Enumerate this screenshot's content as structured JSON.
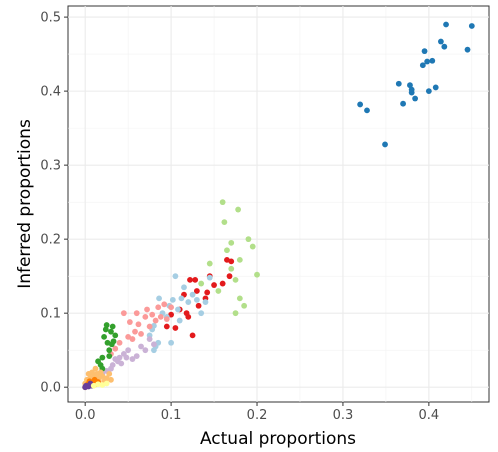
{
  "chart_data": {
    "type": "scatter",
    "title": "",
    "xlabel": "Actual proportions",
    "ylabel": "Inferred proportions",
    "xlim": [
      -0.02,
      0.47
    ],
    "ylim": [
      -0.02,
      0.515
    ],
    "x_ticks": [
      "0.0",
      "0.1",
      "0.2",
      "0.3",
      "0.4"
    ],
    "y_ticks": [
      "0.0",
      "0.1",
      "0.2",
      "0.3",
      "0.4",
      "0.5"
    ],
    "grid": true,
    "legend": "none",
    "series": [
      {
        "color": "#1f78b4",
        "points": [
          [
            0.32,
            0.382
          ],
          [
            0.328,
            0.374
          ],
          [
            0.349,
            0.328
          ],
          [
            0.365,
            0.41
          ],
          [
            0.37,
            0.383
          ],
          [
            0.378,
            0.408
          ],
          [
            0.38,
            0.398
          ],
          [
            0.38,
            0.402
          ],
          [
            0.384,
            0.39
          ],
          [
            0.393,
            0.435
          ],
          [
            0.395,
            0.454
          ],
          [
            0.398,
            0.44
          ],
          [
            0.4,
            0.4
          ],
          [
            0.404,
            0.441
          ],
          [
            0.408,
            0.405
          ],
          [
            0.414,
            0.467
          ],
          [
            0.418,
            0.46
          ],
          [
            0.42,
            0.49
          ],
          [
            0.445,
            0.456
          ],
          [
            0.45,
            0.488
          ]
        ]
      },
      {
        "color": "#b2df8a",
        "points": [
          [
            0.135,
            0.14
          ],
          [
            0.145,
            0.167
          ],
          [
            0.155,
            0.13
          ],
          [
            0.16,
            0.25
          ],
          [
            0.162,
            0.223
          ],
          [
            0.165,
            0.185
          ],
          [
            0.17,
            0.16
          ],
          [
            0.17,
            0.195
          ],
          [
            0.175,
            0.145
          ],
          [
            0.178,
            0.24
          ],
          [
            0.18,
            0.172
          ],
          [
            0.18,
            0.12
          ],
          [
            0.185,
            0.11
          ],
          [
            0.19,
            0.2
          ],
          [
            0.195,
            0.19
          ],
          [
            0.2,
            0.152
          ],
          [
            0.175,
            0.1
          ]
        ]
      },
      {
        "color": "#e31a1c",
        "points": [
          [
            0.095,
            0.082
          ],
          [
            0.1,
            0.098
          ],
          [
            0.105,
            0.08
          ],
          [
            0.11,
            0.105
          ],
          [
            0.115,
            0.125
          ],
          [
            0.118,
            0.1
          ],
          [
            0.12,
            0.095
          ],
          [
            0.122,
            0.145
          ],
          [
            0.125,
            0.07
          ],
          [
            0.128,
            0.145
          ],
          [
            0.13,
            0.13
          ],
          [
            0.132,
            0.11
          ],
          [
            0.14,
            0.12
          ],
          [
            0.142,
            0.128
          ],
          [
            0.145,
            0.15
          ],
          [
            0.15,
            0.138
          ],
          [
            0.16,
            0.14
          ],
          [
            0.165,
            0.172
          ],
          [
            0.17,
            0.17
          ],
          [
            0.168,
            0.15
          ]
        ]
      },
      {
        "color": "#a6cee3",
        "points": [
          [
            0.075,
            0.07
          ],
          [
            0.078,
            0.078
          ],
          [
            0.08,
            0.083
          ],
          [
            0.082,
            0.055
          ],
          [
            0.085,
            0.06
          ],
          [
            0.086,
            0.12
          ],
          [
            0.09,
            0.1
          ],
          [
            0.095,
            0.095
          ],
          [
            0.098,
            0.11
          ],
          [
            0.1,
            0.06
          ],
          [
            0.102,
            0.118
          ],
          [
            0.105,
            0.15
          ],
          [
            0.108,
            0.105
          ],
          [
            0.11,
            0.09
          ],
          [
            0.112,
            0.12
          ],
          [
            0.115,
            0.135
          ],
          [
            0.12,
            0.115
          ],
          [
            0.125,
            0.125
          ],
          [
            0.13,
            0.118
          ],
          [
            0.135,
            0.1
          ],
          [
            0.14,
            0.115
          ],
          [
            0.145,
            0.148
          ],
          [
            0.08,
            0.05
          ]
        ]
      },
      {
        "color": "#fb9a99",
        "points": [
          [
            0.04,
            0.06
          ],
          [
            0.045,
            0.1
          ],
          [
            0.05,
            0.068
          ],
          [
            0.052,
            0.088
          ],
          [
            0.055,
            0.065
          ],
          [
            0.058,
            0.075
          ],
          [
            0.06,
            0.1
          ],
          [
            0.062,
            0.085
          ],
          [
            0.065,
            0.072
          ],
          [
            0.07,
            0.095
          ],
          [
            0.072,
            0.105
          ],
          [
            0.075,
            0.082
          ],
          [
            0.078,
            0.098
          ],
          [
            0.082,
            0.09
          ],
          [
            0.085,
            0.108
          ],
          [
            0.088,
            0.095
          ],
          [
            0.092,
            0.112
          ],
          [
            0.095,
            0.092
          ],
          [
            0.1,
            0.108
          ],
          [
            0.03,
            0.045
          ],
          [
            0.035,
            0.052
          ]
        ]
      },
      {
        "color": "#cab2d6",
        "points": [
          [
            0.03,
            0.025
          ],
          [
            0.032,
            0.03
          ],
          [
            0.035,
            0.038
          ],
          [
            0.038,
            0.035
          ],
          [
            0.04,
            0.04
          ],
          [
            0.042,
            0.032
          ],
          [
            0.045,
            0.045
          ],
          [
            0.048,
            0.04
          ],
          [
            0.05,
            0.05
          ],
          [
            0.055,
            0.038
          ],
          [
            0.06,
            0.042
          ],
          [
            0.065,
            0.055
          ],
          [
            0.07,
            0.05
          ],
          [
            0.075,
            0.065
          ],
          [
            0.08,
            0.058
          ],
          [
            0.025,
            0.022
          ],
          [
            0.02,
            0.018
          ],
          [
            0.015,
            0.012
          ]
        ]
      },
      {
        "color": "#33a02c",
        "points": [
          [
            0.015,
            0.035
          ],
          [
            0.018,
            0.03
          ],
          [
            0.02,
            0.04
          ],
          [
            0.022,
            0.068
          ],
          [
            0.024,
            0.078
          ],
          [
            0.025,
            0.084
          ],
          [
            0.026,
            0.06
          ],
          [
            0.028,
            0.05
          ],
          [
            0.03,
            0.075
          ],
          [
            0.032,
            0.082
          ],
          [
            0.033,
            0.062
          ],
          [
            0.035,
            0.07
          ],
          [
            0.028,
            0.042
          ],
          [
            0.031,
            0.058
          ],
          [
            0.02,
            0.025
          ]
        ]
      },
      {
        "color": "#fdbf6f",
        "points": [
          [
            0.0,
            0.005
          ],
          [
            0.002,
            0.01
          ],
          [
            0.004,
            0.018
          ],
          [
            0.006,
            0.012
          ],
          [
            0.008,
            0.02
          ],
          [
            0.01,
            0.015
          ],
          [
            0.012,
            0.025
          ],
          [
            0.014,
            0.018
          ],
          [
            0.016,
            0.012
          ],
          [
            0.018,
            0.02
          ],
          [
            0.02,
            0.015
          ],
          [
            0.022,
            0.008
          ],
          [
            0.025,
            0.012
          ],
          [
            0.028,
            0.018
          ],
          [
            0.03,
            0.01
          ]
        ]
      },
      {
        "color": "#ff7f00",
        "points": [
          [
            0.0,
            0.0
          ],
          [
            0.003,
            0.004
          ],
          [
            0.005,
            0.008
          ],
          [
            0.007,
            0.003
          ],
          [
            0.009,
            0.006
          ],
          [
            0.011,
            0.01
          ],
          [
            0.013,
            0.004
          ],
          [
            0.015,
            0.007
          ]
        ]
      },
      {
        "color": "#6a3d9a",
        "points": [
          [
            0.001,
            0.002
          ],
          [
            0.004,
            0.001
          ],
          [
            0.006,
            0.005
          ],
          [
            0.008,
            0.002
          ],
          [
            0.0,
            0.0
          ]
        ]
      },
      {
        "color": "#ffff99",
        "points": [
          [
            0.01,
            0.002
          ],
          [
            0.015,
            0.004
          ],
          [
            0.02,
            0.003
          ],
          [
            0.025,
            0.005
          ]
        ]
      }
    ]
  }
}
